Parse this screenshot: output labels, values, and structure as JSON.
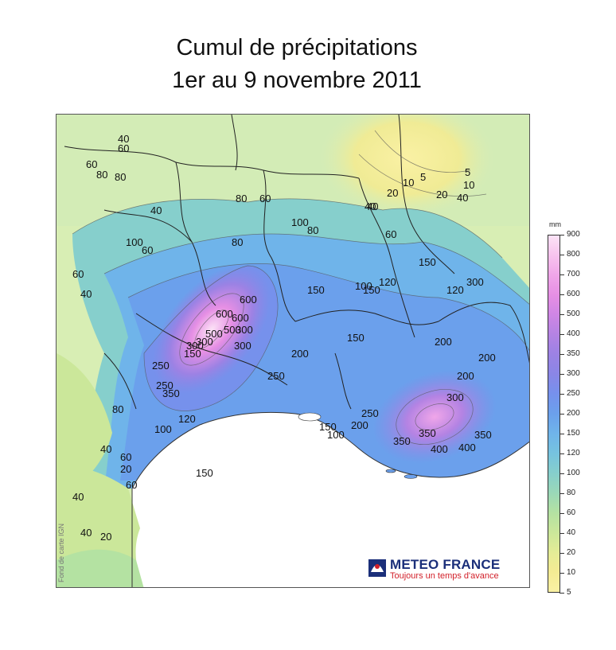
{
  "title": {
    "line1": "Cumul de précipitations",
    "line2": "1er au 9 novembre 2011"
  },
  "map": {
    "sea_color": "#ffffff",
    "background_color": "#dcefb4",
    "credit": "Fond de carte IGN",
    "isohyet_labels": [
      "40",
      "60",
      "80",
      "60",
      "80",
      "40",
      "40",
      "60",
      "80",
      "100",
      "60",
      "40",
      "20",
      "10",
      "5",
      "20",
      "40",
      "10",
      "5",
      "100",
      "60",
      "40",
      "80",
      "60",
      "150",
      "150",
      "120",
      "300",
      "80",
      "150",
      "100",
      "120",
      "150",
      "200",
      "200",
      "300",
      "500",
      "600",
      "300",
      "600",
      "500",
      "300",
      "600",
      "300",
      "150",
      "250",
      "250",
      "80",
      "150",
      "200",
      "250",
      "350",
      "120",
      "100",
      "200",
      "250",
      "200",
      "300",
      "350",
      "350",
      "400",
      "350",
      "400",
      "150",
      "100",
      "40",
      "60",
      "20",
      "60",
      "40",
      "40",
      "20"
    ]
  },
  "legend": {
    "unit": "mm",
    "levels": [
      "900",
      "800",
      "700",
      "600",
      "500",
      "400",
      "350",
      "300",
      "250",
      "200",
      "150",
      "120",
      "100",
      "80",
      "60",
      "40",
      "20",
      "10",
      "5"
    ],
    "colors": [
      "#fce3f6",
      "#f7c3ee",
      "#f0a6e9",
      "#e68fe4",
      "#cf86e5",
      "#b483e3",
      "#9c82e4",
      "#8a86e6",
      "#7691ec",
      "#6ba0ec",
      "#6fb4ea",
      "#76c3df",
      "#86cfcc",
      "#9ad8b8",
      "#b4e2a2",
      "#cbe79a",
      "#e4ec96",
      "#f4eb93",
      "#faf1a4"
    ]
  },
  "logo": {
    "name": "METEO FRANCE",
    "tagline": "Toujours un temps d'avance",
    "color_primary": "#1b2f7a",
    "color_accent": "#d2202a"
  }
}
